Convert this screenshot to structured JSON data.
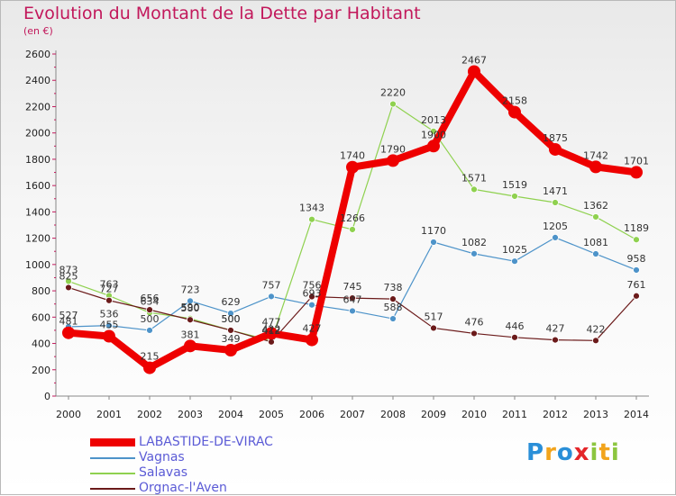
{
  "title": "Evolution du Montant de la Dette par Habitant",
  "subtitle": "(en €)",
  "logo": {
    "letters": [
      "P",
      "r",
      "o",
      "x",
      "i",
      "t",
      "i"
    ],
    "colors": [
      "#2a8fd8",
      "#f2a41c",
      "#2a8fd8",
      "#e4262a",
      "#8cc63f",
      "#f2a41c",
      "#8cc63f"
    ]
  },
  "chart_data": {
    "type": "line",
    "title": "Evolution du Montant de la Dette par Habitant",
    "subtitle": "(en €)",
    "ylim": [
      0,
      2600
    ],
    "yticks": [
      0,
      200,
      400,
      600,
      800,
      1000,
      1200,
      1400,
      1600,
      1800,
      2000,
      2200,
      2400,
      2600
    ],
    "ytick_labels": [
      "0",
      "200",
      "400",
      "600",
      "800",
      "1000",
      "1200",
      "1400",
      "1600",
      "1800",
      "2000",
      "2200",
      "2400",
      "2600"
    ],
    "categories": [
      "2000",
      "2001",
      "2002",
      "2003",
      "2004",
      "2005",
      "2006",
      "2007",
      "2008",
      "2009",
      "2010",
      "2011",
      "2012",
      "2013",
      "2014"
    ],
    "grid": false,
    "legend_position": "bottom-left",
    "series": [
      {
        "name": "LABASTIDE-DE-VIRAC",
        "color": "#ee0000",
        "values": [
          481,
          455,
          215,
          381,
          349,
          477,
          427,
          1740,
          1790,
          1900,
          2467,
          2158,
          1875,
          1742,
          1701
        ],
        "labels": [
          "481",
          "455",
          "215",
          "381",
          "349",
          "477",
          "427",
          "1740",
          "1790",
          "1900",
          "2467",
          "2158",
          "1875",
          "1742",
          "1701"
        ]
      },
      {
        "name": "Vagnas",
        "color": "#4d93c9",
        "values": [
          527,
          536,
          500,
          723,
          629,
          757,
          693,
          647,
          588,
          1170,
          1082,
          1025,
          1205,
          1081,
          958
        ],
        "labels": [
          "527",
          "536",
          "500",
          "723",
          "629",
          "757",
          "693",
          "647",
          "588",
          "1170",
          "1082",
          "1025",
          "1205",
          "1081",
          "958"
        ]
      },
      {
        "name": "Salavas",
        "color": "#8fd14f",
        "values": [
          873,
          763,
          634,
          590,
          500,
          422,
          1343,
          1266,
          2220,
          2013,
          1571,
          1519,
          1471,
          1362,
          1189
        ],
        "labels": [
          "873",
          "763",
          "634",
          "590",
          "500",
          "422",
          "1343",
          "1266",
          "2220",
          "2013",
          "1571",
          "1519",
          "1471",
          "1362",
          "1189"
        ]
      },
      {
        "name": "Orgnac-l'Aven",
        "color": "#6b1a1a",
        "values": [
          825,
          727,
          656,
          580,
          500,
          412,
          756,
          745,
          738,
          517,
          476,
          446,
          427,
          422,
          761
        ],
        "labels": [
          "825",
          "727",
          "656",
          "580",
          "500",
          "412",
          "756",
          "745",
          "738",
          "517",
          "476",
          "446",
          "427",
          "422",
          "761"
        ]
      }
    ]
  }
}
